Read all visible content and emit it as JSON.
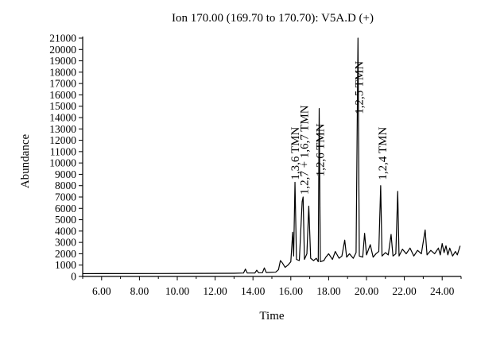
{
  "chart_data": {
    "type": "line",
    "title": "Ion 170.00 (169.70 to 170.70): V5A.D (+)",
    "xlabel": "Time",
    "ylabel": "Abundance",
    "xlim": [
      5.0,
      25.0
    ],
    "ylim": [
      0,
      21000
    ],
    "x_ticks": [
      6,
      8,
      10,
      12,
      14,
      16,
      18,
      20,
      22,
      24
    ],
    "x_tick_labels": [
      "6.00",
      "8.00",
      "10.00",
      "12.00",
      "14.00",
      "16.00",
      "18.00",
      "20.00",
      "22.00",
      "24.00"
    ],
    "y_ticks": [
      0,
      1000,
      2000,
      3000,
      4000,
      5000,
      6000,
      7000,
      8000,
      9000,
      10000,
      11000,
      12000,
      13000,
      14000,
      15000,
      16000,
      17000,
      18000,
      19000,
      20000,
      21000
    ],
    "y_tick_labels": [
      "0",
      "1000",
      "2000",
      "3000",
      "4000",
      "5000",
      "6000",
      "7000",
      "8000",
      "9000",
      "10000",
      "11000",
      "12000",
      "13000",
      "14000",
      "15000",
      "16000",
      "17000",
      "18000",
      "19000",
      "20000",
      "21000"
    ],
    "grid": false,
    "series": [
      {
        "color": "#000000",
        "points": [
          [
            5.0,
            250
          ],
          [
            9.0,
            260
          ],
          [
            13.0,
            280
          ],
          [
            13.5,
            300
          ],
          [
            13.6,
            650
          ],
          [
            13.7,
            300
          ],
          [
            14.1,
            300
          ],
          [
            14.2,
            550
          ],
          [
            14.3,
            320
          ],
          [
            14.5,
            330
          ],
          [
            14.6,
            750
          ],
          [
            14.7,
            350
          ],
          [
            15.2,
            380
          ],
          [
            15.35,
            600
          ],
          [
            15.45,
            1400
          ],
          [
            15.55,
            1200
          ],
          [
            15.7,
            800
          ],
          [
            15.85,
            1000
          ],
          [
            16.0,
            1300
          ],
          [
            16.1,
            3900
          ],
          [
            16.15,
            1800
          ],
          [
            16.22,
            8300
          ],
          [
            16.3,
            1500
          ],
          [
            16.45,
            1400
          ],
          [
            16.6,
            6600
          ],
          [
            16.65,
            7000
          ],
          [
            16.72,
            1500
          ],
          [
            16.85,
            2000
          ],
          [
            16.95,
            6200
          ],
          [
            17.05,
            1600
          ],
          [
            17.2,
            1400
          ],
          [
            17.35,
            1600
          ],
          [
            17.45,
            1300
          ],
          [
            17.5,
            14800
          ],
          [
            17.56,
            1300
          ],
          [
            17.75,
            1400
          ],
          [
            17.85,
            1700
          ],
          [
            18.0,
            2000
          ],
          [
            18.2,
            1500
          ],
          [
            18.35,
            2200
          ],
          [
            18.55,
            1600
          ],
          [
            18.7,
            1800
          ],
          [
            18.85,
            3200
          ],
          [
            18.95,
            1700
          ],
          [
            19.1,
            2000
          ],
          [
            19.3,
            1600
          ],
          [
            19.45,
            2100
          ],
          [
            19.55,
            21000
          ],
          [
            19.62,
            1800
          ],
          [
            19.8,
            1700
          ],
          [
            19.9,
            3800
          ],
          [
            20.0,
            1900
          ],
          [
            20.2,
            2800
          ],
          [
            20.35,
            1700
          ],
          [
            20.5,
            2000
          ],
          [
            20.65,
            2200
          ],
          [
            20.75,
            8000
          ],
          [
            20.82,
            1800
          ],
          [
            21.0,
            2100
          ],
          [
            21.15,
            1900
          ],
          [
            21.3,
            3700
          ],
          [
            21.4,
            1800
          ],
          [
            21.55,
            2000
          ],
          [
            21.65,
            7500
          ],
          [
            21.72,
            1800
          ],
          [
            21.9,
            2400
          ],
          [
            22.1,
            2000
          ],
          [
            22.3,
            2500
          ],
          [
            22.5,
            1800
          ],
          [
            22.7,
            2300
          ],
          [
            22.9,
            2000
          ],
          [
            23.1,
            4100
          ],
          [
            23.2,
            1900
          ],
          [
            23.4,
            2300
          ],
          [
            23.6,
            2000
          ],
          [
            23.8,
            2500
          ],
          [
            23.9,
            1900
          ],
          [
            24.0,
            2900
          ],
          [
            24.1,
            2100
          ],
          [
            24.2,
            2700
          ],
          [
            24.3,
            1900
          ],
          [
            24.4,
            2500
          ],
          [
            24.55,
            1800
          ],
          [
            24.7,
            2200
          ],
          [
            24.8,
            1900
          ],
          [
            24.95,
            2700
          ]
        ]
      }
    ],
    "annotations": [
      {
        "text": "1,3,6 TMN",
        "x": 16.22,
        "y": 8500
      },
      {
        "text": "1,2,7 + 1,6,7 TMN",
        "x": 16.7,
        "y": 7200
      },
      {
        "text": "1,2,6 TMN",
        "x": 17.55,
        "y": 8800
      },
      {
        "text": "1,2,5 TMN",
        "x": 19.6,
        "y": 14300
      },
      {
        "text": "1,2,4 TMN",
        "x": 20.85,
        "y": 8500
      }
    ]
  }
}
